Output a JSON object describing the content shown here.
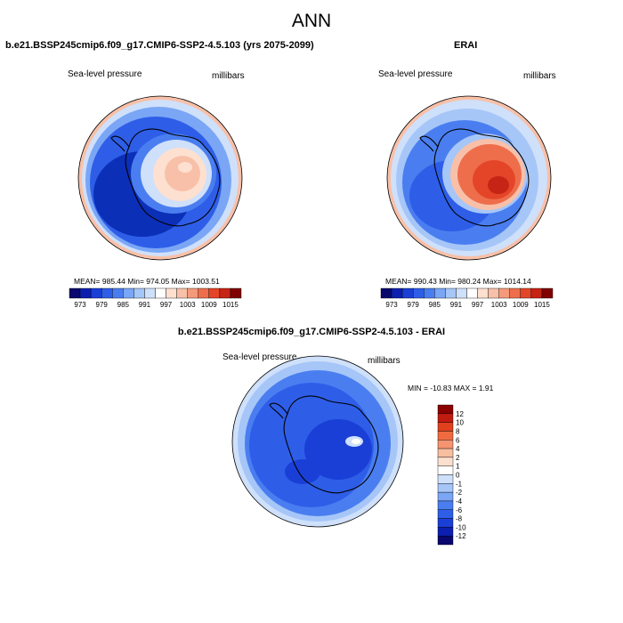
{
  "page_title": "ANN",
  "panels": [
    {
      "title": "b.e21.BSSP245cmip6.f09_g17.CMIP6-SSP2-4.5.103 (yrs 2075-2099)",
      "variable": "Sea-level pressure",
      "units": "millibars",
      "stats": "MEAN= 985.44  Min= 974.05  Max= 1003.51"
    },
    {
      "title": "ERAI",
      "variable": "Sea-level pressure",
      "units": "millibars",
      "stats": "MEAN= 990.43  Min= 980.24  Max= 1014.14"
    },
    {
      "title": "b.e21.BSSP245cmip6.f09_g17.CMIP6-SSP2-4.5.103 - ERAI",
      "variable": "Sea-level pressure",
      "units": "millibars",
      "stats": "MIN = -10.83 MAX =   1.91"
    }
  ],
  "legend_top": {
    "labels": [
      "973",
      "979",
      "985",
      "991",
      "997",
      "1003",
      "1009",
      "1015"
    ],
    "colors": [
      "#08086e",
      "#0c1fb0",
      "#1a3fd6",
      "#2e5ee8",
      "#4a7ef0",
      "#7aa6f5",
      "#a6c6f8",
      "#cfe0fb",
      "#ffffff",
      "#fde0d0",
      "#f8c0a8",
      "#f49a7a",
      "#ee6e4c",
      "#e44528",
      "#c62414",
      "#800000"
    ]
  },
  "legend_diff": {
    "labels": [
      "12",
      "10",
      "8",
      "6",
      "4",
      "2",
      "1",
      "0",
      "-1",
      "-2",
      "-4",
      "-6",
      "-8",
      "-10",
      "-12"
    ],
    "colors": [
      "#8b0000",
      "#c01b10",
      "#e0401c",
      "#f06a40",
      "#f59470",
      "#f8bea0",
      "#fbe0d0",
      "#ffffff",
      "#cfe0fb",
      "#a6c6f8",
      "#7aa6f5",
      "#4a7ef0",
      "#2e5ee8",
      "#1a3fd6",
      "#0c1fb0",
      "#08086e"
    ]
  },
  "map_colors": {
    "deep_blue": "#0c2fb8",
    "blue": "#2e5ee8",
    "mid_blue": "#4a7ef0",
    "light_blue": "#a6c6f8",
    "pale_blue": "#cfe0fb",
    "pale_red": "#f8c0a8",
    "red": "#ee6e4c",
    "dark_red": "#e44528"
  }
}
